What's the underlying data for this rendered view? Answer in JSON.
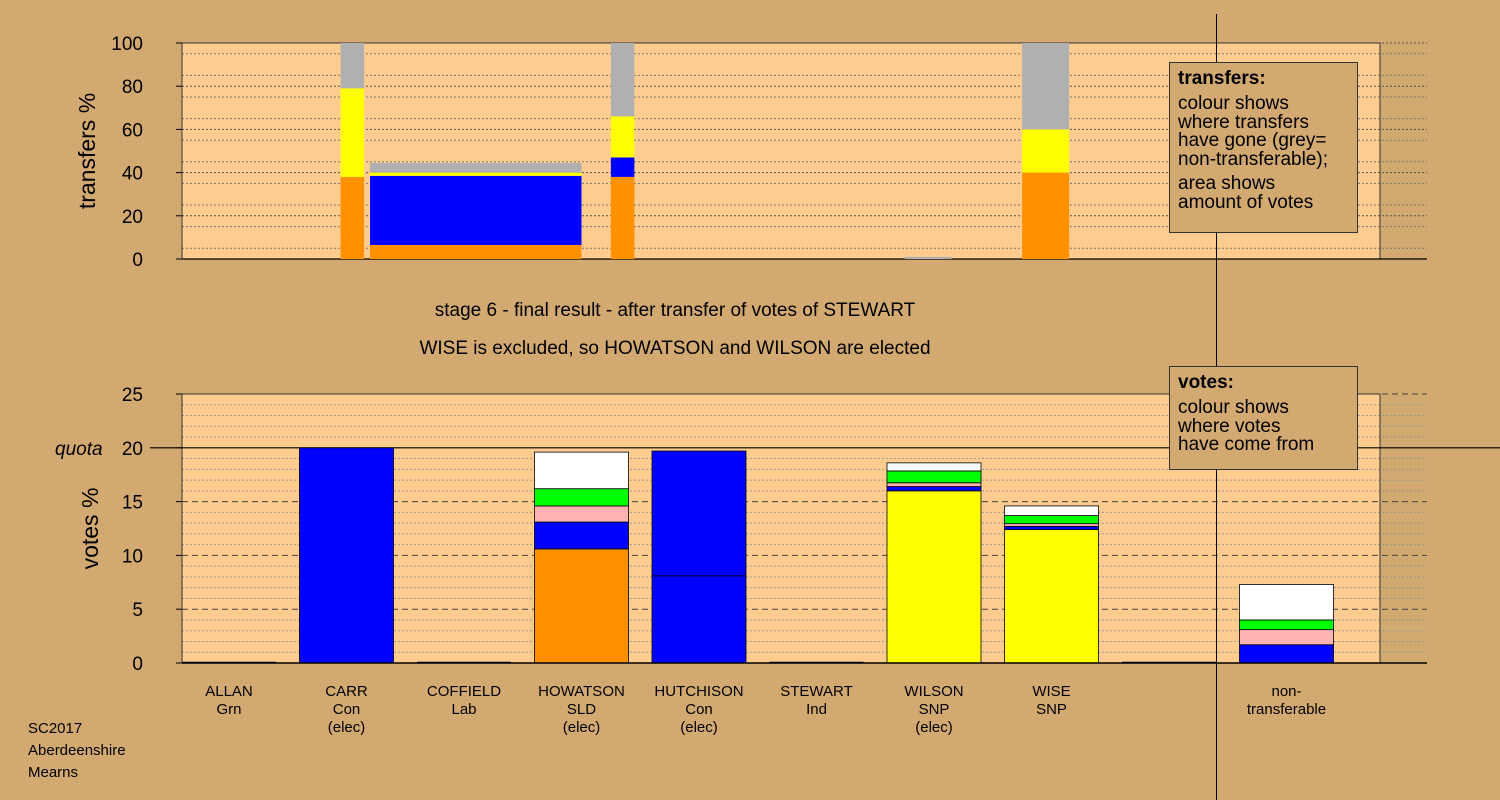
{
  "stage_title": "stage 6 - final result - after transfer of votes of STEWART",
  "stage_subtitle": "WISE is excluded, so HOWATSON and WILSON are elected",
  "footer": [
    "SC2017",
    "Aberdeenshire",
    "Mearns"
  ],
  "legend_transfers": {
    "title": "transfers:",
    "lines": [
      "colour shows",
      "where transfers",
      "have gone (grey=",
      "non-transferable);",
      "area shows",
      "amount of votes"
    ]
  },
  "legend_votes": {
    "title": "votes:",
    "lines": [
      "colour shows",
      "where votes",
      "have come from"
    ]
  },
  "colors": {
    "background": "#d3a972",
    "plot_background": "#ffcc8f",
    "Con": "#0000ff",
    "SLD": "#ff9000",
    "SNP": "#ffff00",
    "Grn": "#00ff00",
    "Lab": "#ffb3b3",
    "Ind": "#ffffff",
    "non_transferable": "#b0b0b0"
  },
  "chart_data": [
    {
      "type": "bar",
      "stacked": true,
      "ylabel": "transfers %",
      "ylim": [
        0,
        100
      ],
      "yticks": [
        0,
        20,
        40,
        60,
        80,
        100
      ],
      "grid": true,
      "bars": [
        {
          "x_from": 0.95,
          "x_to": 1.15,
          "segments": [
            {
              "party": "SLD",
              "value": 38
            },
            {
              "party": "SNP",
              "value": 41
            },
            {
              "party": "non_transferable",
              "value": 21
            }
          ]
        },
        {
          "x_from": 1.2,
          "x_to": 3.0,
          "segments": [
            {
              "party": "SLD",
              "value": 6.5
            },
            {
              "party": "Con",
              "value": 32
            },
            {
              "party": "SNP",
              "value": 1.5
            },
            {
              "party": "non_transferable",
              "value": 4.5
            }
          ]
        },
        {
          "x_from": 3.25,
          "x_to": 3.45,
          "segments": [
            {
              "party": "SLD",
              "value": 38
            },
            {
              "party": "Con",
              "value": 9
            },
            {
              "party": "SNP",
              "value": 19
            },
            {
              "party": "non_transferable",
              "value": 34
            }
          ]
        },
        {
          "x_from": 5.75,
          "x_to": 6.15,
          "segments": [
            {
              "party": "non_transferable",
              "value": 1
            }
          ]
        },
        {
          "x_from": 6.75,
          "x_to": 7.15,
          "segments": [
            {
              "party": "SLD",
              "value": 40
            },
            {
              "party": "SNP",
              "value": 20
            },
            {
              "party": "non_transferable",
              "value": 40
            }
          ]
        }
      ]
    },
    {
      "type": "bar",
      "stacked": true,
      "ylabel": "votes %",
      "ylim": [
        0,
        25
      ],
      "yticks": [
        0,
        5,
        10,
        15,
        20,
        25
      ],
      "quota": 20,
      "quota_label": "quota",
      "grid": true,
      "categories": [
        {
          "name": "ALLAN",
          "party": "Grn",
          "note": ""
        },
        {
          "name": "CARR",
          "party": "Con",
          "note": "(elec)"
        },
        {
          "name": "COFFIELD",
          "party": "Lab",
          "note": ""
        },
        {
          "name": "HOWATSON",
          "party": "SLD",
          "note": "(elec)"
        },
        {
          "name": "HUTCHISON",
          "party": "Con",
          "note": "(elec)"
        },
        {
          "name": "STEWART",
          "party": "Ind",
          "note": ""
        },
        {
          "name": "WILSON",
          "party": "SNP",
          "note": "(elec)"
        },
        {
          "name": "WISE",
          "party": "SNP",
          "note": ""
        },
        {
          "name": "",
          "party": "",
          "note": ""
        },
        {
          "name": "non-",
          "party": "transferable",
          "note": ""
        }
      ],
      "stacks": [
        [],
        [
          {
            "party": "Con",
            "value": 20
          }
        ],
        [],
        [
          {
            "party": "SLD",
            "value": 10.6
          },
          {
            "party": "Con",
            "value": 2.5
          },
          {
            "party": "Lab",
            "value": 1.5
          },
          {
            "party": "Grn",
            "value": 1.6
          },
          {
            "party": "Ind",
            "value": 3.4
          }
        ],
        [
          {
            "party": "Con",
            "value": 8.1
          },
          {
            "party": "Con",
            "value": 11.6
          }
        ],
        [],
        [
          {
            "party": "SNP",
            "value": 16
          },
          {
            "party": "Con",
            "value": 0.4
          },
          {
            "party": "Lab",
            "value": 0.35
          },
          {
            "party": "Grn",
            "value": 1.1
          },
          {
            "party": "Ind",
            "value": 0.75
          }
        ],
        [
          {
            "party": "SNP",
            "value": 12.4
          },
          {
            "party": "Con",
            "value": 0.3
          },
          {
            "party": "Lab",
            "value": 0.25
          },
          {
            "party": "Grn",
            "value": 0.75
          },
          {
            "party": "Ind",
            "value": 0.9
          }
        ],
        [],
        [
          {
            "party": "Con",
            "value": 1.7
          },
          {
            "party": "Lab",
            "value": 1.4
          },
          {
            "party": "Grn",
            "value": 0.9
          },
          {
            "party": "Ind",
            "value": 3.3
          }
        ]
      ]
    }
  ]
}
